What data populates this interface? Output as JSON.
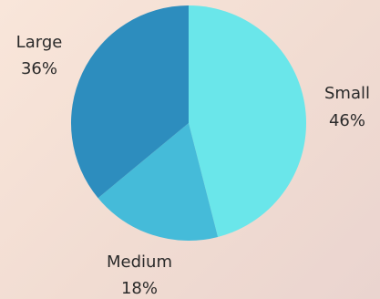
{
  "chart_data": {
    "type": "pie",
    "title": "",
    "start_angle_deg": 90,
    "direction": "clockwise",
    "legend": "none",
    "slices": [
      {
        "label": "Small",
        "value": 46,
        "value_label": "46%",
        "color": "#6ae6ea"
      },
      {
        "label": "Medium",
        "value": 18,
        "value_label": "18%",
        "color": "#45bbd9"
      },
      {
        "label": "Large",
        "value": 36,
        "value_label": "36%",
        "color": "#2d8dbe"
      }
    ]
  }
}
